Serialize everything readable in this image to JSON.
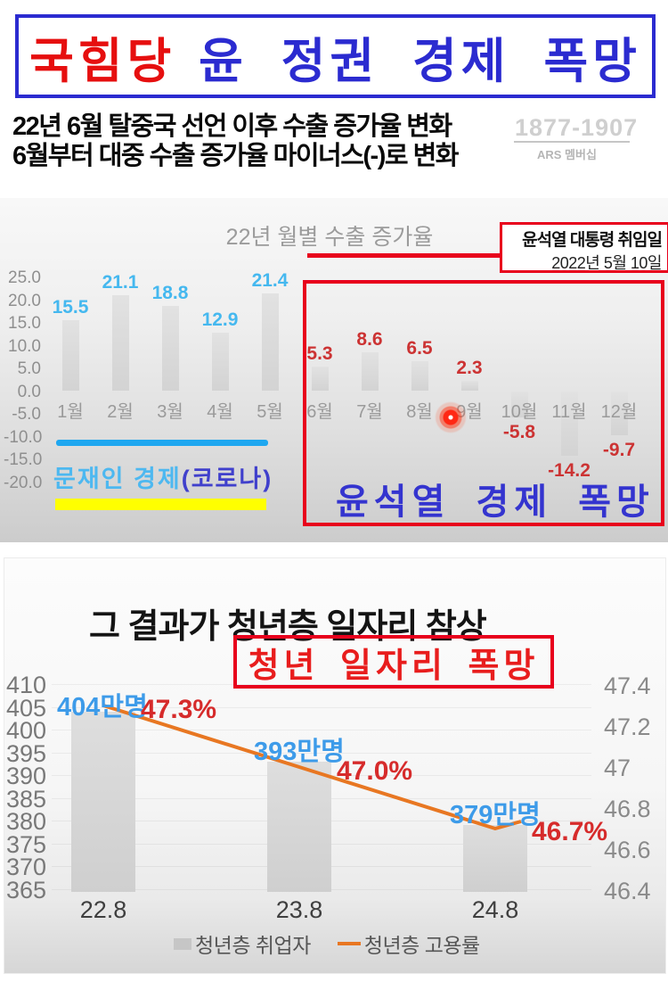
{
  "banner": {
    "party": "국힘당",
    "slogan": "윤 정권 경제 폭망"
  },
  "headline": {
    "line1": "22년 6월 탈중국 선언 이후 수출 증가율 변화",
    "line2": "6월부터 대중 수출 증가율 마이너스(-)로 변화"
  },
  "watermark": {
    "number": "1877-1907",
    "caption": "ARS 멤버십"
  },
  "chart_data": [
    {
      "type": "bar",
      "title": "22년 월별 수출 증가율",
      "categories": [
        "1월",
        "2월",
        "3월",
        "4월",
        "5월",
        "6월",
        "7월",
        "8월",
        "9월",
        "10월",
        "11월",
        "12월"
      ],
      "values": [
        15.5,
        21.1,
        18.8,
        12.9,
        21.4,
        5.3,
        8.6,
        6.5,
        2.3,
        -5.8,
        -14.2,
        -9.7
      ],
      "ylim": [
        -20,
        25
      ],
      "yticks": [
        "25.0",
        "20.0",
        "15.0",
        "10.0",
        "5.0",
        "0.0",
        "-5.0",
        "-10.0",
        "-15.0",
        "-20.0"
      ],
      "grid": false,
      "legend_position": "none",
      "annotations": {
        "inauguration_title": "윤석열 대통령 취임일",
        "inauguration_date": "2022년 5월 10일",
        "moon_label_blue": "문재인 경제",
        "moon_label_dark": "(코로나)",
        "yoon_label": "윤석열 경제 폭망"
      }
    },
    {
      "type": "bar",
      "title": "그 결과가 청년층 일자리 참상",
      "categories": [
        "22.8",
        "23.8",
        "24.8"
      ],
      "series": [
        {
          "name": "청년층 취업자",
          "type": "bar",
          "axis": "left",
          "unit": "만명",
          "values": [
            404,
            393,
            379
          ]
        },
        {
          "name": "청년층 고용률",
          "type": "line",
          "axis": "right",
          "unit": "%",
          "values": [
            47.3,
            47.0,
            46.7
          ]
        }
      ],
      "left_axis": {
        "ticks": [
          410,
          405,
          400,
          395,
          390,
          385,
          380,
          375,
          370,
          365
        ],
        "range": [
          365,
          410
        ]
      },
      "right_axis": {
        "ticks": [
          "47.4",
          "47.2",
          "47",
          "46.8",
          "46.6",
          "46.4"
        ],
        "range": [
          46.4,
          47.4
        ]
      },
      "legend": [
        "청년층 취업자",
        "청년층 고용률"
      ],
      "legend_position": "bottom",
      "annotations": {
        "box_label": "청년 일자리 폭망",
        "bar_labels": [
          "404만명",
          "393만명",
          "379만명"
        ],
        "pct_labels": [
          "47.3%",
          "47.0%",
          "46.7%"
        ]
      }
    }
  ],
  "colors": {
    "banner_red": "#e60f0f",
    "banner_blue": "#2b2bd0",
    "accent_red": "#e8001c",
    "hand_blue": "#3434cf",
    "hand_red": "#e81d1d",
    "value_blue": "#45b8ef",
    "value_red": "#cc3333",
    "bar_gray": "#d9d9d9",
    "line_orange": "#e87722",
    "moon_underline_blue": "#1ea7f0",
    "moon_underline_yellow": "#ffff00",
    "employment_label_blue": "#3d9be9"
  }
}
